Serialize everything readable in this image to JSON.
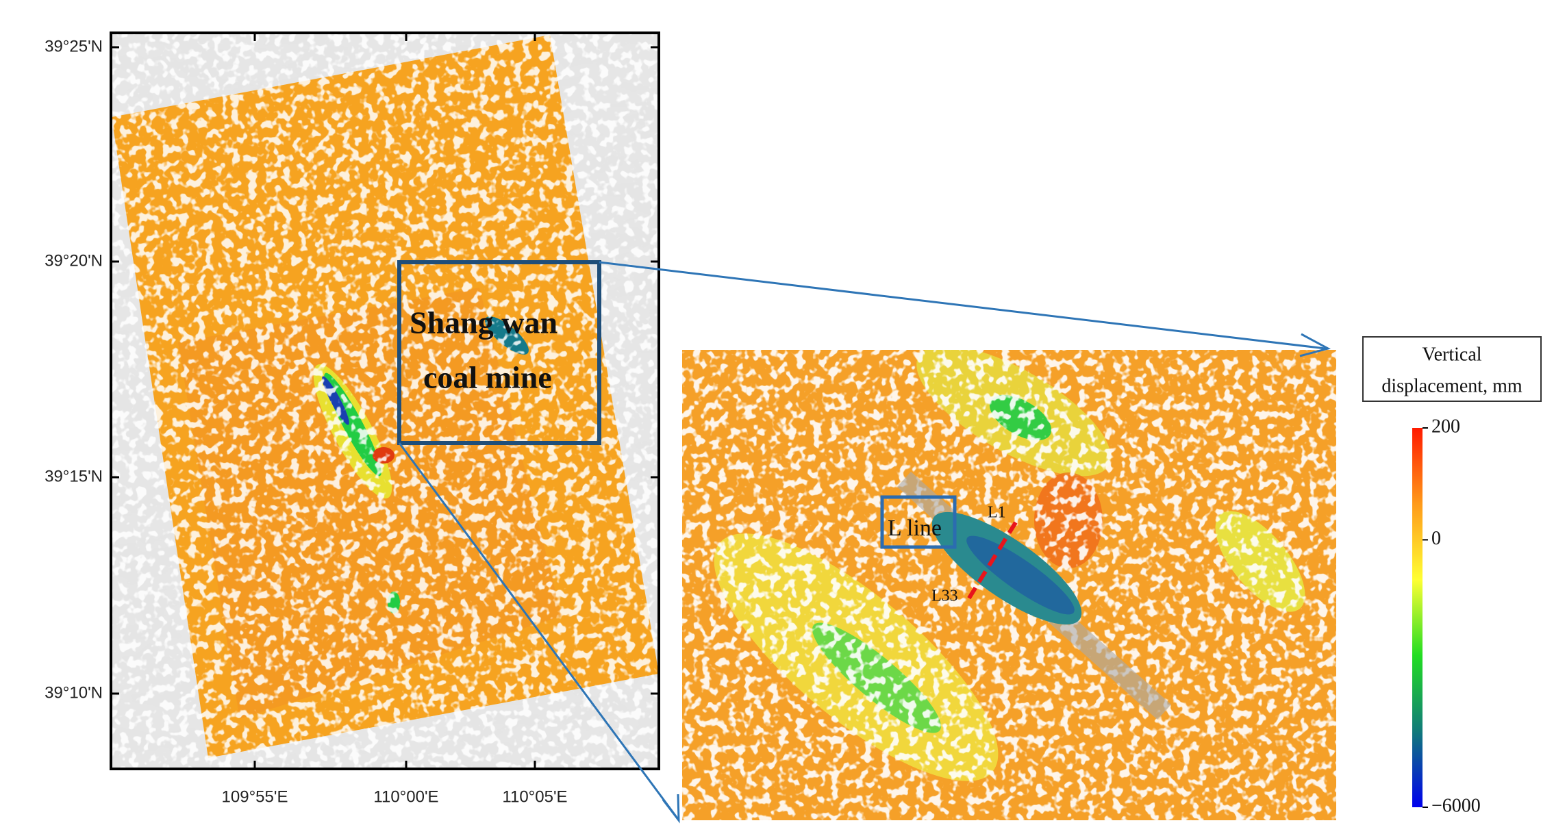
{
  "map": {
    "lat_labels": [
      "39°25'N",
      "39°20'N",
      "39°15'N",
      "39°10'N"
    ],
    "lon_labels": [
      "109°55'E",
      "110°00'E",
      "110°05'E"
    ],
    "annotation": [
      "Shang wan",
      "coal mine"
    ]
  },
  "inset": {
    "box_label": "L line",
    "line_labels": [
      "L1",
      "L33"
    ]
  },
  "colorbar": {
    "title": [
      "Vertical",
      "displacement, mm"
    ],
    "ticks": [
      200,
      0,
      {
        "value": -6000,
        "label": "−6000"
      }
    ],
    "colormap": [
      "#ff1a00",
      "#ff9a1a",
      "#ffff33",
      "#22dd22",
      "#117a7a",
      "#0000ee"
    ]
  }
}
